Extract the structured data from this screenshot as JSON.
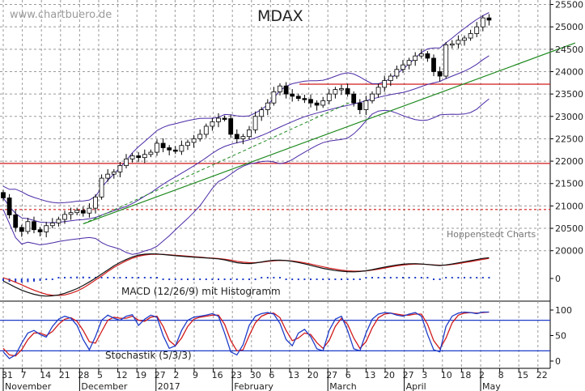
{
  "chart_data": {
    "type": "candlestick",
    "title": "MDAX",
    "watermark": "www.chartbuero.de",
    "source": "Hoppenstedt Charts",
    "colors": {
      "up_candle": "#ffffff",
      "down_candle": "#000000",
      "bollinger": "#4b2aa6",
      "trendline": "#1f8a1f",
      "horizontal": "#d11a1a",
      "macd": "#111111",
      "signal": "#d11a1a",
      "histogram": "#1e3cc8",
      "stoch_k": "#1e3cc8",
      "stoch_d": "#d11a1a",
      "grid": "#9a9a9a"
    },
    "x_axis": {
      "day_labels": [
        "31",
        "7",
        "14",
        "21",
        "28",
        "5",
        "12",
        "19",
        "27",
        "2",
        "9",
        "16",
        "23",
        "30",
        "6",
        "13",
        "20",
        "27",
        "6",
        "13",
        "20",
        "27",
        "3",
        "10",
        "18",
        "2",
        "8",
        "15",
        "22"
      ],
      "month_labels": [
        "November",
        "December",
        "2017",
        "February",
        "March",
        "April",
        "May"
      ]
    },
    "price_panel": {
      "y_ticks": [
        20000,
        20500,
        21000,
        21500,
        22000,
        22500,
        23000,
        23500,
        24000,
        24500,
        25000,
        25500
      ],
      "ylim": [
        19850,
        25600
      ],
      "horizontal_lines": [
        {
          "value": 23720,
          "style": "solid"
        },
        {
          "value": 21950,
          "style": "solid"
        },
        {
          "value": 20920,
          "style": "dashed"
        }
      ],
      "trendline": {
        "from": [
          13,
          20600
        ],
        "to": [
          93,
          24640
        ]
      },
      "trendline_dashed": {
        "from": [
          13,
          20600
        ],
        "to": [
          57,
          23350
        ]
      },
      "closes": [
        21180,
        20800,
        20520,
        20430,
        20650,
        20470,
        20420,
        20560,
        20620,
        20700,
        20810,
        20850,
        20900,
        20840,
        20950,
        21200,
        21620,
        21710,
        21760,
        21900,
        22050,
        22120,
        22080,
        22150,
        22200,
        22400,
        22300,
        22250,
        22220,
        22350,
        22420,
        22500,
        22600,
        22780,
        22880,
        22960,
        22950,
        22600,
        22500,
        22550,
        22700,
        23000,
        23150,
        23300,
        23550,
        23680,
        23500,
        23450,
        23400,
        23380,
        23300,
        23250,
        23350,
        23500,
        23600,
        23620,
        23500,
        23300,
        23150,
        23350,
        23500,
        23650,
        23800,
        23900,
        24050,
        24150,
        24250,
        24350,
        24400,
        24300,
        24000,
        23900,
        24600,
        24620,
        24700,
        24750,
        24850,
        25000,
        25200,
        25150
      ]
    },
    "macd_panel": {
      "label": "MACD (12/26/9) mit Histogramm",
      "y_ticks": [
        0
      ],
      "macd": [
        -40,
        -90,
        -140,
        -185,
        -220,
        -250,
        -270,
        -280,
        -275,
        -260,
        -235,
        -200,
        -160,
        -110,
        -55,
        5,
        70,
        135,
        200,
        255,
        300,
        340,
        370,
        385,
        390,
        388,
        380,
        370,
        360,
        352,
        345,
        338,
        332,
        325,
        318,
        310,
        295,
        272,
        250,
        238,
        236,
        245,
        262,
        278,
        288,
        290,
        283,
        270,
        252,
        232,
        208,
        183,
        160,
        142,
        126,
        115,
        108,
        105,
        110,
        122,
        140,
        160,
        180,
        198,
        214,
        225,
        232,
        235,
        230,
        222,
        212,
        205,
        215,
        230,
        248,
        265,
        282,
        300,
        318,
        330
      ],
      "signal": [
        10,
        -20,
        -60,
        -100,
        -145,
        -185,
        -220,
        -250,
        -265,
        -268,
        -260,
        -235,
        -200,
        -150,
        -90,
        -25,
        40,
        110,
        175,
        230,
        280,
        320,
        352,
        372,
        382,
        385,
        382,
        376,
        368,
        360,
        352,
        345,
        338,
        330,
        323,
        316,
        305,
        290,
        272,
        258,
        250,
        250,
        258,
        270,
        280,
        286,
        285,
        278,
        265,
        248,
        228,
        206,
        184,
        164,
        147,
        132,
        121,
        115,
        115,
        120,
        132,
        148,
        166,
        184,
        200,
        213,
        222,
        228,
        227,
        222,
        215,
        210,
        212,
        222,
        236,
        252,
        268,
        285,
        302,
        318
      ]
    },
    "stoch_panel": {
      "label": "Stochastik (5/3/3)",
      "y_ticks": [
        0,
        50,
        100
      ],
      "levels": [
        80,
        20
      ],
      "k": [
        18,
        5,
        12,
        35,
        55,
        60,
        52,
        47,
        68,
        82,
        88,
        84,
        70,
        42,
        22,
        48,
        80,
        90,
        84,
        80,
        88,
        91,
        70,
        82,
        90,
        86,
        50,
        25,
        30,
        60,
        80,
        86,
        88,
        90,
        93,
        88,
        55,
        18,
        12,
        32,
        70,
        88,
        93,
        95,
        92,
        74,
        42,
        30,
        55,
        62,
        48,
        24,
        20,
        60,
        82,
        88,
        60,
        24,
        20,
        55,
        82,
        92,
        95,
        94,
        90,
        88,
        92,
        95,
        88,
        52,
        22,
        18,
        68,
        88,
        94,
        96,
        95,
        93,
        96,
        96
      ],
      "d": [
        25,
        12,
        10,
        22,
        42,
        55,
        55,
        50,
        58,
        72,
        82,
        85,
        78,
        60,
        38,
        35,
        58,
        80,
        86,
        84,
        84,
        88,
        80,
        78,
        86,
        88,
        68,
        40,
        30,
        45,
        68,
        82,
        86,
        88,
        90,
        90,
        72,
        40,
        20,
        22,
        50,
        75,
        88,
        93,
        94,
        85,
        60,
        40,
        45,
        55,
        52,
        36,
        25,
        40,
        68,
        84,
        72,
        45,
        25,
        38,
        65,
        85,
        92,
        94,
        92,
        90,
        90,
        92,
        92,
        72,
        40,
        24,
        45,
        75,
        90,
        94,
        95,
        94,
        95,
        96
      ]
    }
  }
}
